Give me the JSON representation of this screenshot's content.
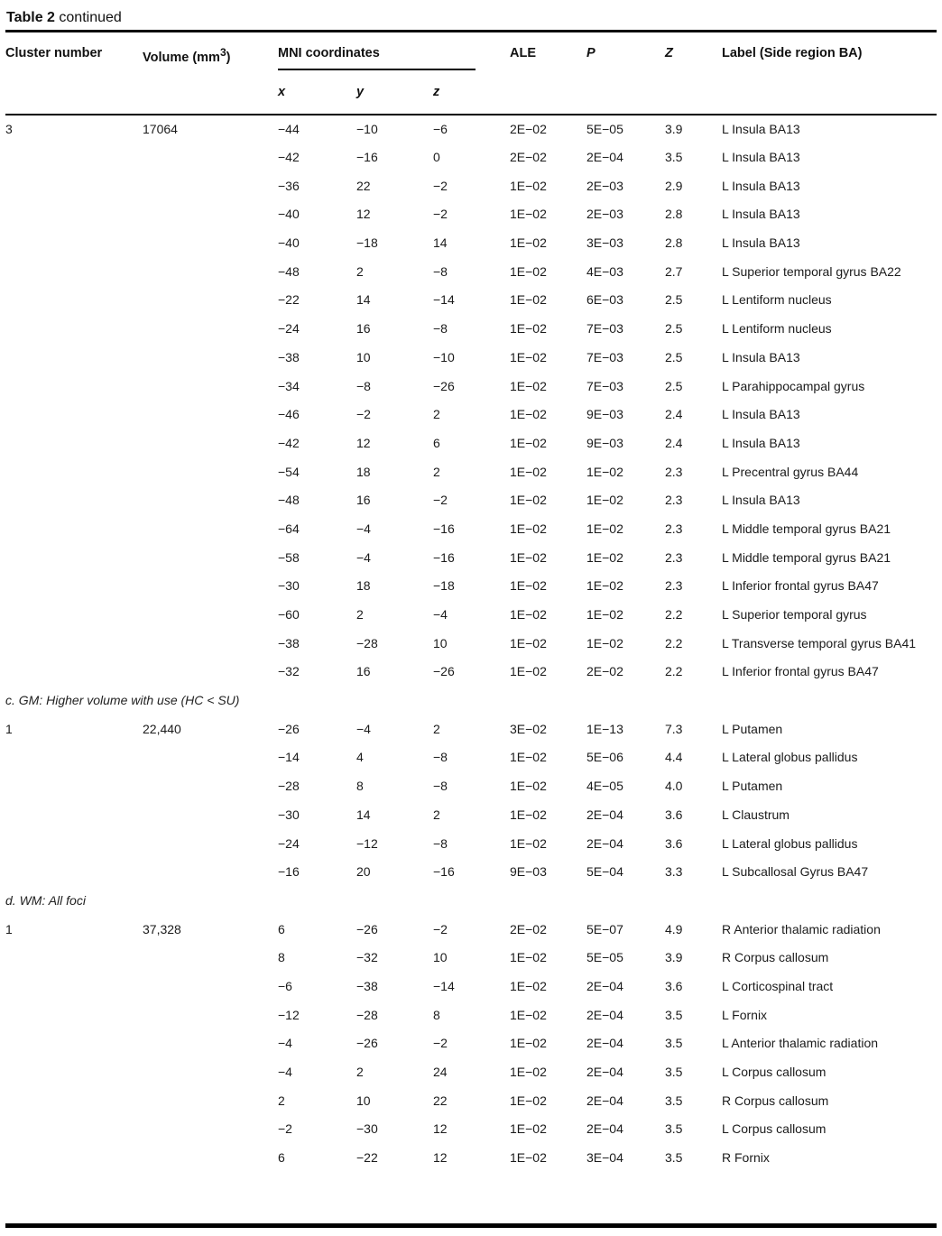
{
  "title": {
    "bold": "Table 2",
    "rest": "continued"
  },
  "colors": {
    "text": "#1b1b1b",
    "rule": "#000000",
    "background": "#ffffff"
  },
  "table": {
    "column_headers": {
      "cluster": "Cluster number",
      "volume_pre": "Volume (mm",
      "volume_sup": "3",
      "volume_post": ")",
      "mni_group": "MNI coordinates",
      "ale": "ALE",
      "p": "P",
      "z": "Z",
      "label": "Label (Side region BA)"
    },
    "subcolumns": {
      "x": "x",
      "y": "y",
      "z": "z"
    },
    "sections": [
      {
        "label": "",
        "rows": [
          {
            "cluster": "3",
            "volume": "17064",
            "x": "−44",
            "y": "−10",
            "z": "−6",
            "ale": "2E−02",
            "p": "5E−05",
            "zscore": "3.9",
            "label": "L Insula BA13"
          },
          {
            "cluster": "",
            "volume": "",
            "x": "−42",
            "y": "−16",
            "z": "0",
            "ale": "2E−02",
            "p": "2E−04",
            "zscore": "3.5",
            "label": "L Insula BA13"
          },
          {
            "cluster": "",
            "volume": "",
            "x": "−36",
            "y": "22",
            "z": "−2",
            "ale": "1E−02",
            "p": "2E−03",
            "zscore": "2.9",
            "label": "L Insula BA13"
          },
          {
            "cluster": "",
            "volume": "",
            "x": "−40",
            "y": "12",
            "z": "−2",
            "ale": "1E−02",
            "p": "2E−03",
            "zscore": "2.8",
            "label": "L Insula BA13"
          },
          {
            "cluster": "",
            "volume": "",
            "x": "−40",
            "y": "−18",
            "z": "14",
            "ale": "1E−02",
            "p": "3E−03",
            "zscore": "2.8",
            "label": "L Insula BA13"
          },
          {
            "cluster": "",
            "volume": "",
            "x": "−48",
            "y": "2",
            "z": "−8",
            "ale": "1E−02",
            "p": "4E−03",
            "zscore": "2.7",
            "label": "L Superior temporal gyrus BA22"
          },
          {
            "cluster": "",
            "volume": "",
            "x": "−22",
            "y": "14",
            "z": "−14",
            "ale": "1E−02",
            "p": "6E−03",
            "zscore": "2.5",
            "label": "L Lentiform nucleus"
          },
          {
            "cluster": "",
            "volume": "",
            "x": "−24",
            "y": "16",
            "z": "−8",
            "ale": "1E−02",
            "p": "7E−03",
            "zscore": "2.5",
            "label": "L Lentiform nucleus"
          },
          {
            "cluster": "",
            "volume": "",
            "x": "−38",
            "y": "10",
            "z": "−10",
            "ale": "1E−02",
            "p": "7E−03",
            "zscore": "2.5",
            "label": "L Insula BA13"
          },
          {
            "cluster": "",
            "volume": "",
            "x": "−34",
            "y": "−8",
            "z": "−26",
            "ale": "1E−02",
            "p": "7E−03",
            "zscore": "2.5",
            "label": "L Parahippocampal gyrus"
          },
          {
            "cluster": "",
            "volume": "",
            "x": "−46",
            "y": "−2",
            "z": "2",
            "ale": "1E−02",
            "p": "9E−03",
            "zscore": "2.4",
            "label": "L Insula BA13"
          },
          {
            "cluster": "",
            "volume": "",
            "x": "−42",
            "y": "12",
            "z": "6",
            "ale": "1E−02",
            "p": "9E−03",
            "zscore": "2.4",
            "label": "L Insula BA13"
          },
          {
            "cluster": "",
            "volume": "",
            "x": "−54",
            "y": "18",
            "z": "2",
            "ale": "1E−02",
            "p": "1E−02",
            "zscore": "2.3",
            "label": "L Precentral gyrus BA44"
          },
          {
            "cluster": "",
            "volume": "",
            "x": "−48",
            "y": "16",
            "z": "−2",
            "ale": "1E−02",
            "p": "1E−02",
            "zscore": "2.3",
            "label": "L Insula BA13"
          },
          {
            "cluster": "",
            "volume": "",
            "x": "−64",
            "y": "−4",
            "z": "−16",
            "ale": "1E−02",
            "p": "1E−02",
            "zscore": "2.3",
            "label": "L Middle temporal gyrus BA21"
          },
          {
            "cluster": "",
            "volume": "",
            "x": "−58",
            "y": "−4",
            "z": "−16",
            "ale": "1E−02",
            "p": "1E−02",
            "zscore": "2.3",
            "label": "L Middle temporal gyrus BA21"
          },
          {
            "cluster": "",
            "volume": "",
            "x": "−30",
            "y": "18",
            "z": "−18",
            "ale": "1E−02",
            "p": "1E−02",
            "zscore": "2.3",
            "label": "L Inferior frontal gyrus BA47"
          },
          {
            "cluster": "",
            "volume": "",
            "x": "−60",
            "y": "2",
            "z": "−4",
            "ale": "1E−02",
            "p": "1E−02",
            "zscore": "2.2",
            "label": "L Superior temporal gyrus"
          },
          {
            "cluster": "",
            "volume": "",
            "x": "−38",
            "y": "−28",
            "z": "10",
            "ale": "1E−02",
            "p": "1E−02",
            "zscore": "2.2",
            "label": "L Transverse temporal gyrus BA41"
          },
          {
            "cluster": "",
            "volume": "",
            "x": "−32",
            "y": "16",
            "z": "−26",
            "ale": "1E−02",
            "p": "2E−02",
            "zscore": "2.2",
            "label": "L Inferior frontal gyrus BA47"
          }
        ]
      },
      {
        "label": "c. GM: Higher volume with use (HC < SU)",
        "rows": [
          {
            "cluster": "1",
            "volume": "22,440",
            "x": "−26",
            "y": "−4",
            "z": "2",
            "ale": "3E−02",
            "p": "1E−13",
            "zscore": "7.3",
            "label": "L Putamen"
          },
          {
            "cluster": "",
            "volume": "",
            "x": "−14",
            "y": "4",
            "z": "−8",
            "ale": "1E−02",
            "p": "5E−06",
            "zscore": "4.4",
            "label": "L Lateral globus pallidus"
          },
          {
            "cluster": "",
            "volume": "",
            "x": "−28",
            "y": "8",
            "z": "−8",
            "ale": "1E−02",
            "p": "4E−05",
            "zscore": "4.0",
            "label": "L Putamen"
          },
          {
            "cluster": "",
            "volume": "",
            "x": "−30",
            "y": "14",
            "z": "2",
            "ale": "1E−02",
            "p": "2E−04",
            "zscore": "3.6",
            "label": "L Claustrum"
          },
          {
            "cluster": "",
            "volume": "",
            "x": "−24",
            "y": "−12",
            "z": "−8",
            "ale": "1E−02",
            "p": "2E−04",
            "zscore": "3.6",
            "label": "L Lateral globus pallidus"
          },
          {
            "cluster": "",
            "volume": "",
            "x": "−16",
            "y": "20",
            "z": "−16",
            "ale": "9E−03",
            "p": "5E−04",
            "zscore": "3.3",
            "label": "L Subcallosal Gyrus BA47"
          }
        ]
      },
      {
        "label": "d. WM: All foci",
        "rows": [
          {
            "cluster": "1",
            "volume": "37,328",
            "x": "6",
            "y": "−26",
            "z": "−2",
            "ale": "2E−02",
            "p": "5E−07",
            "zscore": "4.9",
            "label": "R Anterior thalamic radiation"
          },
          {
            "cluster": "",
            "volume": "",
            "x": "8",
            "y": "−32",
            "z": "10",
            "ale": "1E−02",
            "p": "5E−05",
            "zscore": "3.9",
            "label": "R Corpus callosum"
          },
          {
            "cluster": "",
            "volume": "",
            "x": "−6",
            "y": "−38",
            "z": "−14",
            "ale": "1E−02",
            "p": "2E−04",
            "zscore": "3.6",
            "label": "L Corticospinal tract"
          },
          {
            "cluster": "",
            "volume": "",
            "x": "−12",
            "y": "−28",
            "z": "8",
            "ale": "1E−02",
            "p": "2E−04",
            "zscore": "3.5",
            "label": "L Fornix"
          },
          {
            "cluster": "",
            "volume": "",
            "x": "−4",
            "y": "−26",
            "z": "−2",
            "ale": "1E−02",
            "p": "2E−04",
            "zscore": "3.5",
            "label": "L Anterior thalamic radiation"
          },
          {
            "cluster": "",
            "volume": "",
            "x": "−4",
            "y": "2",
            "z": "24",
            "ale": "1E−02",
            "p": "2E−04",
            "zscore": "3.5",
            "label": "L Corpus callosum"
          },
          {
            "cluster": "",
            "volume": "",
            "x": "2",
            "y": "10",
            "z": "22",
            "ale": "1E−02",
            "p": "2E−04",
            "zscore": "3.5",
            "label": "R Corpus callosum"
          },
          {
            "cluster": "",
            "volume": "",
            "x": "−2",
            "y": "−30",
            "z": "12",
            "ale": "1E−02",
            "p": "2E−04",
            "zscore": "3.5",
            "label": "L Corpus callosum"
          },
          {
            "cluster": "",
            "volume": "",
            "x": "6",
            "y": "−22",
            "z": "12",
            "ale": "1E−02",
            "p": "3E−04",
            "zscore": "3.5",
            "label": "R Fornix"
          }
        ]
      }
    ]
  }
}
